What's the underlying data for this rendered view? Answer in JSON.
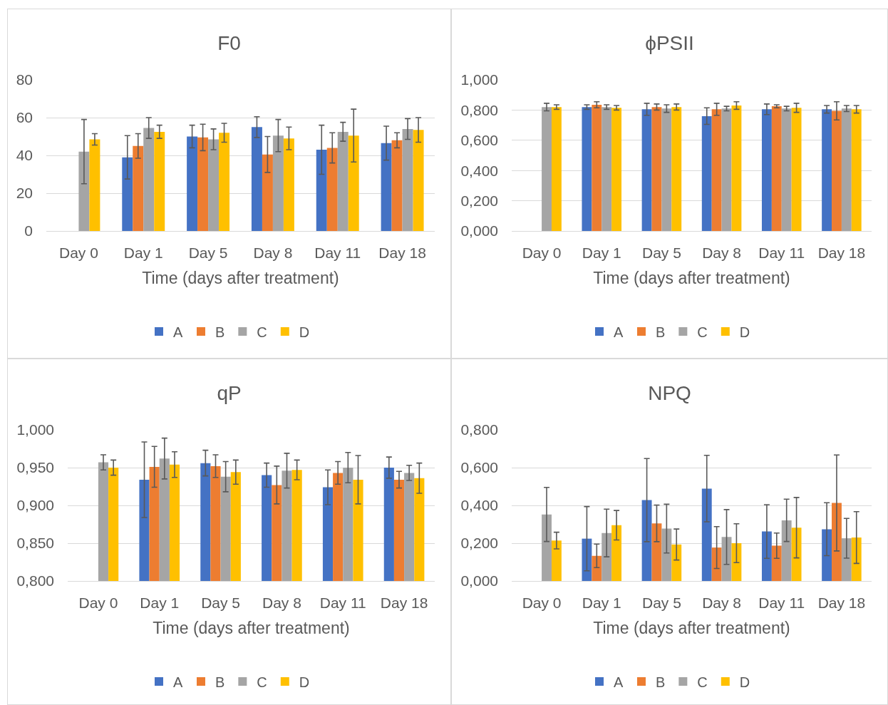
{
  "chart_data": [
    {
      "type": "bar",
      "title": "F0",
      "xlabel": "Time (days after treatment)",
      "categories": [
        "Day 0",
        "Day 1",
        "Day 5",
        "Day 8",
        "Day 11",
        "Day 18"
      ],
      "series": [
        {
          "name": "A",
          "color": "#4472c4",
          "values": [
            null,
            39,
            50,
            55,
            43,
            46.5
          ],
          "errors": [
            null,
            11.5,
            6,
            5.5,
            13,
            9
          ]
        },
        {
          "name": "B",
          "color": "#ed7d31",
          "values": [
            null,
            45,
            49.5,
            40.5,
            44,
            48
          ],
          "errors": [
            null,
            6.5,
            7,
            9.5,
            8,
            4
          ]
        },
        {
          "name": "C",
          "color": "#a5a5a5",
          "values": [
            42,
            54.5,
            48.5,
            50.5,
            52.5,
            54
          ],
          "errors": [
            17,
            5.5,
            5.5,
            8.5,
            5,
            5.5
          ]
        },
        {
          "name": "D",
          "color": "#ffc000",
          "values": [
            48.5,
            52.5,
            52,
            49,
            50.5,
            53.5
          ],
          "errors": [
            3,
            3.5,
            5,
            6,
            14,
            6.5
          ]
        }
      ],
      "ylim": [
        0,
        80
      ],
      "yticks": [
        0,
        20,
        40,
        60,
        80
      ],
      "grid": "y",
      "legend": "bottom"
    },
    {
      "type": "bar",
      "title": "ϕPSII",
      "xlabel": "Time (days after treatment)",
      "categories": [
        "Day 0",
        "Day 1",
        "Day 5",
        "Day 8",
        "Day 11",
        "Day 18"
      ],
      "series": [
        {
          "name": "A",
          "color": "#4472c4",
          "values": [
            null,
            0.82,
            0.805,
            0.76,
            0.805,
            0.805
          ],
          "errors": [
            null,
            0.015,
            0.04,
            0.055,
            0.035,
            0.025
          ]
        },
        {
          "name": "B",
          "color": "#ed7d31",
          "values": [
            null,
            0.835,
            0.82,
            0.805,
            0.825,
            0.795
          ],
          "errors": [
            null,
            0.02,
            0.02,
            0.04,
            0.01,
            0.06
          ]
        },
        {
          "name": "C",
          "color": "#a5a5a5",
          "values": [
            0.82,
            0.82,
            0.81,
            0.81,
            0.81,
            0.81
          ],
          "errors": [
            0.025,
            0.015,
            0.025,
            0.015,
            0.015,
            0.02
          ]
        },
        {
          "name": "D",
          "color": "#ffc000",
          "values": [
            0.82,
            0.815,
            0.82,
            0.83,
            0.815,
            0.805
          ],
          "errors": [
            0.015,
            0.015,
            0.02,
            0.025,
            0.03,
            0.025
          ]
        }
      ],
      "ylim": [
        0,
        1
      ],
      "yticks": [
        {
          "value": 0,
          "label": "0,000"
        },
        {
          "value": 0.2,
          "label": "0,200"
        },
        {
          "value": 0.4,
          "label": "0,400"
        },
        {
          "value": 0.6,
          "label": "0,600"
        },
        {
          "value": 0.8,
          "label": "0,800"
        },
        {
          "value": 1,
          "label": "1,000"
        }
      ],
      "grid": "y",
      "legend": "bottom"
    },
    {
      "type": "bar",
      "title": "qP",
      "xlabel": "Time (days after treatment)",
      "categories": [
        "Day 0",
        "Day 1",
        "Day 5",
        "Day 8",
        "Day 11",
        "Day 18"
      ],
      "series": [
        {
          "name": "A",
          "color": "#4472c4",
          "values": [
            null,
            0.934,
            0.956,
            0.94,
            0.924,
            0.95
          ],
          "errors": [
            null,
            0.05,
            0.017,
            0.016,
            0.023,
            0.014
          ]
        },
        {
          "name": "B",
          "color": "#ed7d31",
          "values": [
            null,
            0.951,
            0.952,
            0.927,
            0.943,
            0.934
          ],
          "errors": [
            null,
            0.027,
            0.015,
            0.025,
            0.015,
            0.011
          ]
        },
        {
          "name": "C",
          "color": "#a5a5a5",
          "values": [
            0.957,
            0.962,
            0.938,
            0.946,
            0.95,
            0.943
          ],
          "errors": [
            0.01,
            0.027,
            0.02,
            0.023,
            0.02,
            0.01
          ]
        },
        {
          "name": "D",
          "color": "#ffc000",
          "values": [
            0.95,
            0.954,
            0.944,
            0.947,
            0.934,
            0.936
          ],
          "errors": [
            0.01,
            0.017,
            0.016,
            0.013,
            0.032,
            0.02
          ]
        }
      ],
      "ylim": [
        0.8,
        1
      ],
      "yticks": [
        {
          "value": 0.8,
          "label": "0,800"
        },
        {
          "value": 0.85,
          "label": "0,850"
        },
        {
          "value": 0.9,
          "label": "0,900"
        },
        {
          "value": 0.95,
          "label": "0,950"
        },
        {
          "value": 1,
          "label": "1,000"
        }
      ],
      "grid": "y",
      "legend": "bottom"
    },
    {
      "type": "bar",
      "title": "NPQ",
      "xlabel": "Time (days after treatment)",
      "categories": [
        "Day 0",
        "Day 1",
        "Day 5",
        "Day 8",
        "Day 11",
        "Day 18"
      ],
      "series": [
        {
          "name": "A",
          "color": "#4472c4",
          "values": [
            null,
            0.224,
            0.428,
            0.489,
            0.262,
            0.274
          ],
          "errors": [
            null,
            0.17,
            0.22,
            0.176,
            0.142,
            0.14
          ]
        },
        {
          "name": "B",
          "color": "#ed7d31",
          "values": [
            null,
            0.133,
            0.305,
            0.177,
            0.187,
            0.413
          ],
          "errors": [
            null,
            0.062,
            0.097,
            0.111,
            0.067,
            0.254
          ]
        },
        {
          "name": "C",
          "color": "#a5a5a5",
          "values": [
            0.352,
            0.254,
            0.277,
            0.233,
            0.321,
            0.226
          ],
          "errors": [
            0.143,
            0.126,
            0.129,
            0.145,
            0.112,
            0.105
          ]
        },
        {
          "name": "D",
          "color": "#ffc000",
          "values": [
            0.214,
            0.295,
            0.193,
            0.2,
            0.282,
            0.23
          ],
          "errors": [
            0.044,
            0.078,
            0.082,
            0.103,
            0.16,
            0.137
          ]
        }
      ],
      "ylim": [
        0,
        0.8
      ],
      "yticks": [
        {
          "value": 0,
          "label": "0,000"
        },
        {
          "value": 0.2,
          "label": "0,200"
        },
        {
          "value": 0.4,
          "label": "0,400"
        },
        {
          "value": 0.6,
          "label": "0,600"
        },
        {
          "value": 0.8,
          "label": "0,800"
        }
      ],
      "grid": "y",
      "legend": "bottom"
    }
  ]
}
